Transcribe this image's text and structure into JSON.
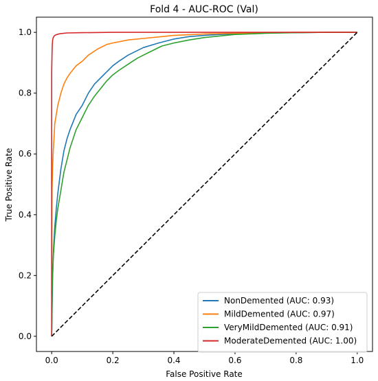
{
  "chart_data": {
    "type": "line",
    "title": "Fold 4 - AUC-ROC (Val)",
    "xlabel": "False Positive Rate",
    "ylabel": "True Positive Rate",
    "xlim": [
      -0.05,
      1.05
    ],
    "ylim": [
      -0.05,
      1.05
    ],
    "xticks": [
      "0.0",
      "0.2",
      "0.4",
      "0.6",
      "0.8",
      "1.0"
    ],
    "yticks": [
      "0.0",
      "0.2",
      "0.4",
      "0.6",
      "0.8",
      "1.0"
    ],
    "legend_position": "lower-right",
    "grid": false,
    "series": [
      {
        "name": "NonDemented (AUC: 0.93)",
        "color": "#1f77b4",
        "x": [
          0,
          0.003,
          0.006,
          0.01,
          0.015,
          0.02,
          0.03,
          0.04,
          0.05,
          0.06,
          0.08,
          0.1,
          0.12,
          0.14,
          0.16,
          0.18,
          0.2,
          0.22,
          0.25,
          0.28,
          0.3,
          0.35,
          0.4,
          0.45,
          0.5,
          0.55,
          0.6,
          0.7,
          0.8,
          0.9,
          1.0
        ],
        "y": [
          0,
          0.2,
          0.29,
          0.36,
          0.42,
          0.47,
          0.55,
          0.61,
          0.65,
          0.68,
          0.73,
          0.76,
          0.8,
          0.83,
          0.85,
          0.87,
          0.89,
          0.905,
          0.925,
          0.94,
          0.95,
          0.965,
          0.978,
          0.986,
          0.99,
          0.993,
          0.995,
          0.998,
          0.999,
          1.0,
          1.0
        ]
      },
      {
        "name": "MildDemented (AUC: 0.97)",
        "color": "#ff7f0e",
        "x": [
          0,
          0.001,
          0.003,
          0.005,
          0.008,
          0.01,
          0.015,
          0.02,
          0.03,
          0.04,
          0.05,
          0.06,
          0.08,
          0.1,
          0.12,
          0.15,
          0.18,
          0.2,
          0.25,
          0.3,
          0.35,
          0.4,
          0.5,
          0.6,
          0.7,
          0.8,
          1.0
        ],
        "y": [
          0,
          0.48,
          0.56,
          0.61,
          0.66,
          0.7,
          0.73,
          0.76,
          0.8,
          0.83,
          0.85,
          0.865,
          0.89,
          0.905,
          0.925,
          0.945,
          0.96,
          0.965,
          0.975,
          0.98,
          0.985,
          0.99,
          0.995,
          0.997,
          0.999,
          1.0,
          1.0
        ]
      },
      {
        "name": "VeryMildDemented (AUC: 0.91)",
        "color": "#2ca02c",
        "x": [
          0,
          0.002,
          0.005,
          0.01,
          0.015,
          0.02,
          0.03,
          0.04,
          0.05,
          0.06,
          0.08,
          0.1,
          0.12,
          0.14,
          0.16,
          0.18,
          0.2,
          0.22,
          0.25,
          0.28,
          0.32,
          0.36,
          0.4,
          0.45,
          0.5,
          0.55,
          0.6,
          0.7,
          0.8,
          0.9,
          1.0
        ],
        "y": [
          0,
          0.18,
          0.26,
          0.33,
          0.38,
          0.42,
          0.48,
          0.54,
          0.58,
          0.62,
          0.68,
          0.72,
          0.76,
          0.79,
          0.815,
          0.84,
          0.86,
          0.875,
          0.895,
          0.915,
          0.935,
          0.955,
          0.965,
          0.975,
          0.983,
          0.988,
          0.993,
          0.997,
          0.999,
          1.0,
          1.0
        ]
      },
      {
        "name": "ModerateDemented (AUC: 1.00)",
        "color": "#d62728",
        "x": [
          0,
          0,
          0.001,
          0.002,
          0.003,
          0.005,
          0.008,
          0.012,
          0.02,
          0.03,
          0.05,
          0.1,
          0.2,
          0.5,
          1.0
        ],
        "y": [
          0,
          0.87,
          0.93,
          0.96,
          0.975,
          0.983,
          0.988,
          0.991,
          0.994,
          0.996,
          0.998,
          0.999,
          1.0,
          1.0,
          1.0
        ]
      },
      {
        "name": "",
        "color": "#000000",
        "dashed": true,
        "x": [
          0,
          1
        ],
        "y": [
          0,
          1
        ]
      }
    ]
  }
}
